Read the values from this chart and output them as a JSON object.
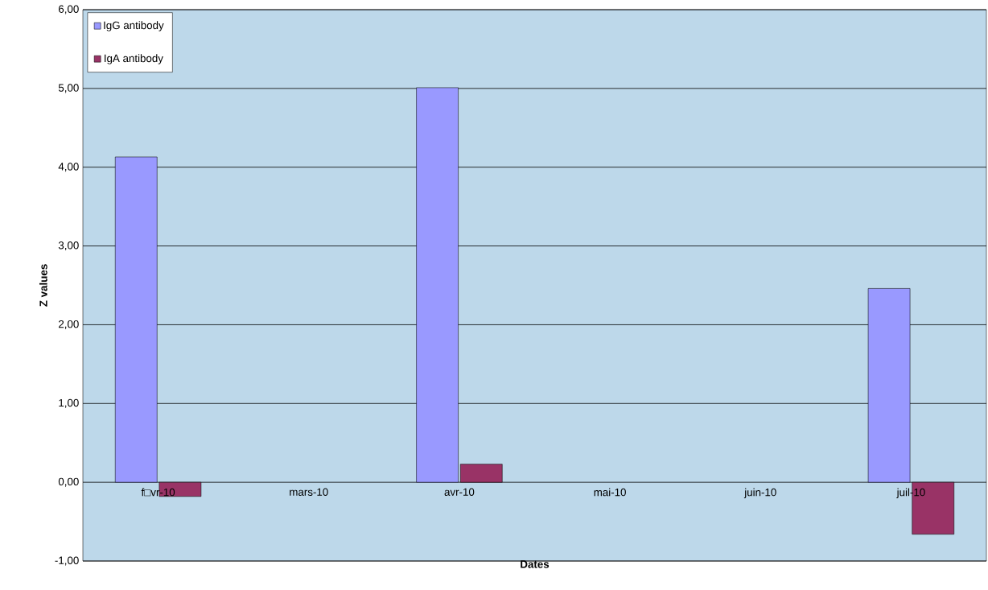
{
  "chart_data": {
    "type": "bar",
    "xlabel": "Dates",
    "ylabel": "Z values",
    "categories": [
      "f□vr-10",
      "mars-10",
      "avr-10",
      "mai-10",
      "juin-10",
      "juil-10"
    ],
    "series": [
      {
        "name": "IgG antibody",
        "color": "#9999ff",
        "values": [
          4.13,
          null,
          5.01,
          null,
          null,
          2.46
        ]
      },
      {
        "name": "IgA antibody",
        "color": "#993366",
        "values": [
          -0.18,
          null,
          0.23,
          null,
          null,
          -0.66
        ]
      }
    ],
    "ylim": [
      -1,
      6
    ],
    "yticks": [
      {
        "value": -1,
        "label": "-1,00"
      },
      {
        "value": 0,
        "label": "0,00"
      },
      {
        "value": 1,
        "label": "1,00"
      },
      {
        "value": 2,
        "label": "2,00"
      },
      {
        "value": 3,
        "label": "3,00"
      },
      {
        "value": 4,
        "label": "4,00"
      },
      {
        "value": 5,
        "label": "5,00"
      },
      {
        "value": 6,
        "label": "6,00"
      }
    ],
    "grid": "y",
    "legend": "top left"
  }
}
